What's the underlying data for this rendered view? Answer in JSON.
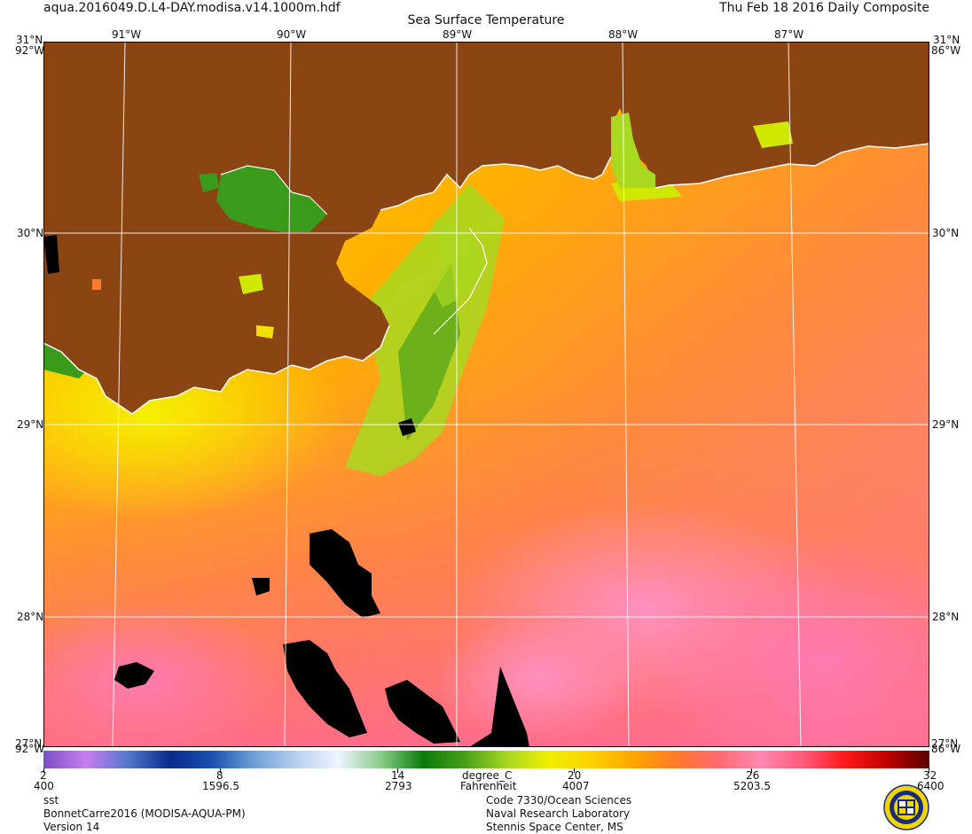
{
  "header": {
    "filename": "aqua.2016049.D.L4-DAY.modisa.v14.1000m.hdf",
    "date_label": "Thu Feb 18 2016 Daily Composite",
    "title": "Sea Surface Temperature"
  },
  "map": {
    "lon_labels": [
      "91°W",
      "90°W",
      "89°W",
      "88°W",
      "87°W"
    ],
    "lat_labels": [
      "30°N",
      "29°N",
      "28°N"
    ],
    "corner_top_left_lat": "31°N",
    "corner_top_right_lat": "31°N",
    "corner_top_left_lon": "92°W",
    "corner_top_right_lon": "86°W",
    "corner_bottom_left_lat": "27°N",
    "corner_bottom_right_lat": "27°N",
    "corner_bottom_left_lon": "92°W",
    "corner_bottom_right_lon": "86°W",
    "land_color": "#8B4513",
    "nodata_color": "#000000",
    "coast_color": "#ffffff"
  },
  "colorbar": {
    "celsius_ticks": [
      "2",
      "8",
      "14",
      "20",
      "26",
      "32"
    ],
    "fahrenheit_ticks": [
      "400",
      "1596.5",
      "2793",
      "4007",
      "5203.5",
      "6400"
    ],
    "unit_top": "degree_C",
    "unit_bottom": "Fahrenheit",
    "colors": [
      "#7a4fc4",
      "#c77ef0",
      "#5577cc",
      "#0a2a8a",
      "#1a50b0",
      "#6fa0d8",
      "#b8d0ee",
      "#f0f4ff",
      "#88cc88",
      "#0a7a0a",
      "#4aa01a",
      "#a8d820",
      "#f0f000",
      "#ffd000",
      "#ffa500",
      "#ff7a2a",
      "#ff6a70",
      "#ff88b0",
      "#ff5a7a",
      "#ff1a1a",
      "#c00000",
      "#5a0000"
    ]
  },
  "footer": {
    "variable": "sst",
    "product": "BonnetCarre2016 (MODISA-AQUA-PM)",
    "version": "Version 14",
    "org_line1": "Code 7330/Ocean Sciences",
    "org_line2": "Naval Research Laboratory",
    "org_line3": "Stennis Space Center, MS"
  }
}
